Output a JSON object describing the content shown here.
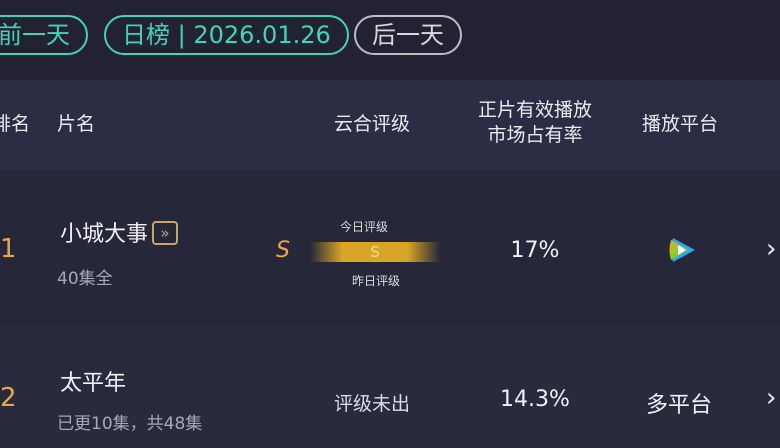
{
  "nav": {
    "prev": "前一天",
    "current": "日榜 | 2026.01.26",
    "next": "后一天"
  },
  "columns": {
    "rank": "排名",
    "title": "片名",
    "rating": "云合评级",
    "share_l1": "正片有效播放",
    "share_l2": "市场占有率",
    "platform": "播放平台"
  },
  "rows": [
    {
      "rank": "1",
      "title": "小城大事",
      "episodes": "40集全",
      "rating_yesterday": "S",
      "rating_today": "S",
      "today_label": "今日评级",
      "yesterday_label": "昨日评级",
      "share": "17%",
      "platform_icon": "tencent-video-icon"
    },
    {
      "rank": "2",
      "title": "太平年",
      "episodes": "已更10集，共48集",
      "rating_text": "评级未出",
      "share": "14.3%",
      "platform": "多平台"
    }
  ],
  "colors": {
    "accent": "#3fd6b5",
    "rank": "#f0a640",
    "gold": "#d9a526"
  }
}
